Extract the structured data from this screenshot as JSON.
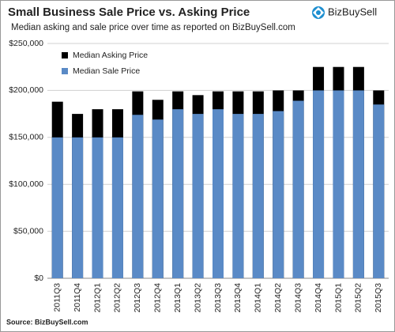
{
  "chart_data": {
    "type": "bar",
    "title": "Small Business Sale Price vs. Asking Price",
    "subtitle": "Median asking and sale price over time as reported on BizBuySell.com",
    "logo": "BizBuySell",
    "source": "Source: BizBuySell.com",
    "categories": [
      "2011Q3",
      "2011Q4",
      "2012Q1",
      "2012Q2",
      "2012Q3",
      "2012Q4",
      "2013Q1",
      "2013Q2",
      "2013Q3",
      "2013Q4",
      "2014Q1",
      "2014Q2",
      "2014Q3",
      "2014Q4",
      "2015Q1",
      "2015Q2",
      "2015Q3"
    ],
    "series": [
      {
        "name": "Median Asking Price",
        "color": "#000000",
        "values": [
          188000,
          175000,
          180000,
          180000,
          199000,
          190000,
          199000,
          195000,
          199000,
          199000,
          199000,
          200000,
          200000,
          225000,
          225000,
          225000,
          200000
        ]
      },
      {
        "name": "Median Sale Price",
        "color": "#5a8ac6",
        "values": [
          150000,
          150000,
          150000,
          150000,
          174000,
          169000,
          180000,
          175000,
          180000,
          175000,
          175000,
          178000,
          189000,
          200000,
          200000,
          200000,
          185000
        ]
      }
    ],
    "ylim": [
      0,
      250000
    ],
    "yticks": [
      {
        "value": 0,
        "label": "$0"
      },
      {
        "value": 50000,
        "label": "$50,000"
      },
      {
        "value": 100000,
        "label": "$100,000"
      },
      {
        "value": 150000,
        "label": "$150,000"
      },
      {
        "value": 200000,
        "label": "$200,000"
      },
      {
        "value": 250000,
        "label": "$250,000"
      }
    ],
    "grid": true,
    "legend": "top-left"
  }
}
